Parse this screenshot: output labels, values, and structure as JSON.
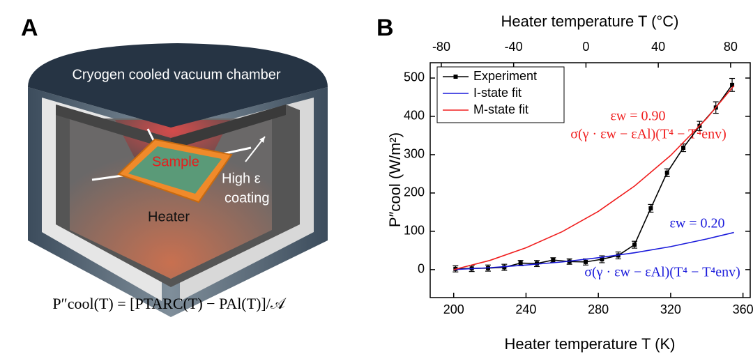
{
  "panel_a": {
    "label": "A",
    "chamber": "Cryogen cooled vacuum chamber",
    "sample": "Sample",
    "coating": [
      "High ε",
      "coating"
    ],
    "heater": "Heater",
    "equation": "P″cool(T) = [PTARC(T) − PAl(T)]/𝒜"
  },
  "chart_data": {
    "type": "line",
    "panel_label": "B",
    "xlabel": "Heater temperature T (K)",
    "x2label": "Heater temperature T (°C)",
    "ylabel": "P″cool (W/m²)",
    "xlim": [
      187,
      364
    ],
    "xticks": [
      200,
      240,
      280,
      320,
      360
    ],
    "x2lim": [
      -86.15,
      90.85
    ],
    "x2ticks": [
      -80,
      -40,
      0,
      40,
      80
    ],
    "ylim": [
      -73,
      540
    ],
    "yticks": [
      0,
      100,
      200,
      300,
      400,
      500
    ],
    "legend": "upper left",
    "series": [
      {
        "name": "Experiment",
        "color": "#000000",
        "marker": "square",
        "x": [
          201,
          210,
          219,
          228,
          237,
          246,
          255,
          264,
          273,
          282,
          291,
          300,
          309,
          318,
          327,
          336,
          345,
          354
        ],
        "values": [
          2,
          3,
          4,
          6,
          17,
          16,
          25,
          21,
          20,
          27,
          37,
          65,
          160,
          253,
          318,
          375,
          423,
          482
        ],
        "errors": [
          8,
          8,
          8,
          8,
          7,
          8,
          6,
          7,
          8,
          9,
          9,
          9,
          10,
          10,
          10,
          12,
          15,
          17
        ]
      },
      {
        "name": "I-state fit",
        "color": "#1a1adb",
        "x": [
          200,
          220,
          240,
          260,
          280,
          300,
          320,
          340,
          355
        ],
        "values": [
          0,
          5,
          12,
          20,
          31,
          44,
          60,
          80,
          97
        ]
      },
      {
        "name": "M-state fit",
        "color": "#f01e1e",
        "x": [
          200,
          220,
          240,
          260,
          280,
          300,
          320,
          340,
          355
        ],
        "values": [
          0,
          24,
          57,
          99,
          152,
          218,
          298,
          395,
          480
        ]
      }
    ],
    "annotations": [
      {
        "text": "εw = 0.90",
        "color": "#f01e1e"
      },
      {
        "text": "σ(γ · εw − εAl)(T⁴ − T⁴env)",
        "color": "#f01e1e"
      },
      {
        "text": "εw = 0.20",
        "color": "#1a1adb"
      },
      {
        "text": "σ(γ · εw − εAl)(T⁴ − T⁴env)",
        "color": "#1a1adb"
      }
    ]
  }
}
